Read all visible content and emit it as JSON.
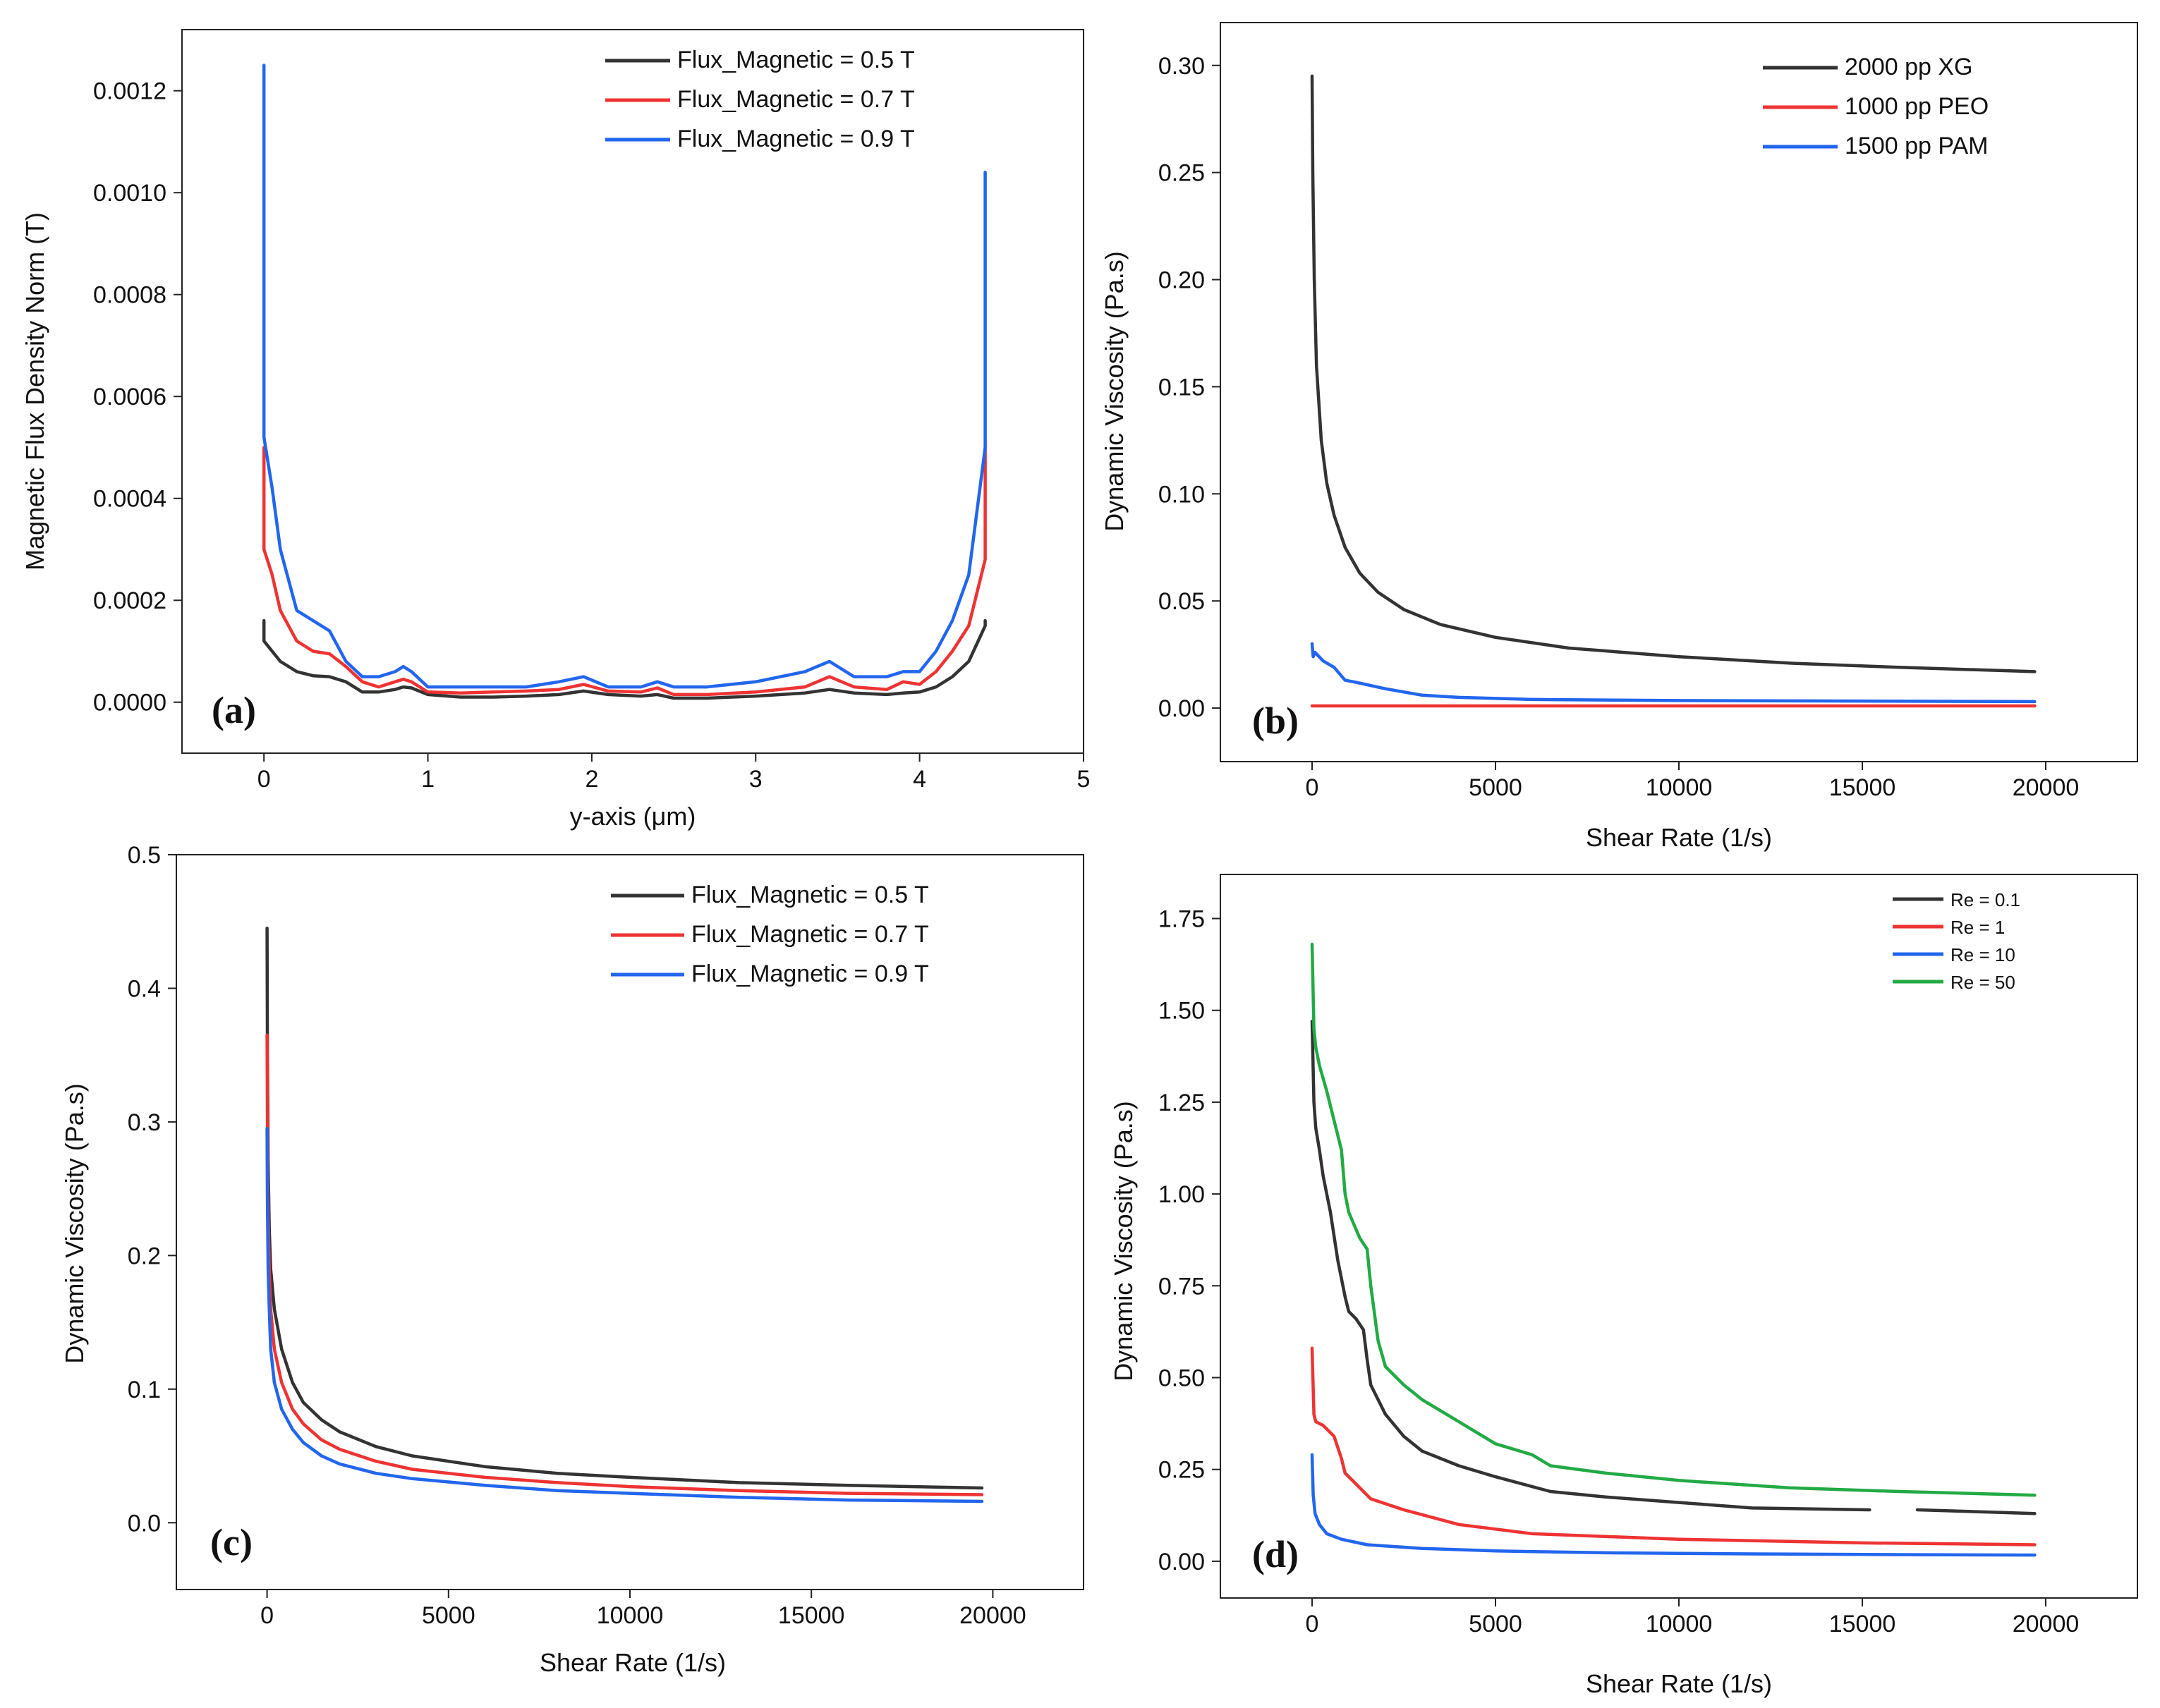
{
  "chart_data": [
    {
      "id": "a",
      "type": "line",
      "panel_label": "(a)",
      "xlabel": "y-axis (μm)",
      "ylabel": "Magnetic Flux Density Norm (T)",
      "xlim": [
        -0.5,
        5
      ],
      "ylim": [
        -0.0001,
        0.00132
      ],
      "xticks": [
        0,
        1,
        2,
        3,
        4,
        5
      ],
      "yticks": [
        0.0,
        0.0002,
        0.0004,
        0.0006,
        0.0008,
        0.001,
        0.0012
      ],
      "ytick_labels": [
        "0.0000",
        "0.0002",
        "0.0004",
        "0.0006",
        "0.0008",
        "0.0010",
        "0.0012"
      ],
      "legend_position": "top-right",
      "series": [
        {
          "name": "Flux_Magnetic = 0.5 T",
          "color": "#333333",
          "x": [
            0,
            0,
            0.05,
            0.1,
            0.2,
            0.3,
            0.4,
            0.5,
            0.6,
            0.7,
            0.8,
            0.85,
            0.9,
            1.0,
            1.2,
            1.4,
            1.6,
            1.8,
            1.95,
            2.1,
            2.3,
            2.4,
            2.5,
            2.7,
            3.0,
            3.3,
            3.45,
            3.6,
            3.8,
            3.9,
            4.0,
            4.1,
            4.2,
            4.3,
            4.4,
            4.4
          ],
          "y": [
            0.00016,
            0.00012,
            0.0001,
            8e-05,
            6e-05,
            5.2e-05,
            5e-05,
            4e-05,
            2e-05,
            2e-05,
            2.5e-05,
            3e-05,
            2.8e-05,
            1.5e-05,
            1e-05,
            1e-05,
            1.2e-05,
            1.5e-05,
            2.2e-05,
            1.5e-05,
            1.2e-05,
            1.5e-05,
            8e-06,
            8e-06,
            1.2e-05,
            1.8e-05,
            2.5e-05,
            1.8e-05,
            1.5e-05,
            1.8e-05,
            2e-05,
            3e-05,
            5e-05,
            8e-05,
            0.00015,
            0.00016
          ]
        },
        {
          "name": "Flux_Magnetic = 0.7 T",
          "color": "#ee3333",
          "x": [
            0,
            0,
            0.05,
            0.1,
            0.2,
            0.3,
            0.4,
            0.5,
            0.6,
            0.7,
            0.8,
            0.85,
            0.9,
            1.0,
            1.2,
            1.4,
            1.6,
            1.8,
            1.95,
            2.1,
            2.3,
            2.4,
            2.5,
            2.7,
            3.0,
            3.3,
            3.45,
            3.6,
            3.8,
            3.9,
            4.0,
            4.1,
            4.2,
            4.3,
            4.4,
            4.4
          ],
          "y": [
            0.0005,
            0.0003,
            0.00025,
            0.00018,
            0.00012,
            0.0001,
            9.5e-05,
            7e-05,
            4e-05,
            3e-05,
            4e-05,
            4.5e-05,
            4e-05,
            2e-05,
            1.8e-05,
            2e-05,
            2.2e-05,
            2.5e-05,
            3.5e-05,
            2.2e-05,
            2e-05,
            2.8e-05,
            1.5e-05,
            1.5e-05,
            2e-05,
            3e-05,
            5e-05,
            3e-05,
            2.5e-05,
            4e-05,
            3.5e-05,
            6e-05,
            0.0001,
            0.00015,
            0.00028,
            0.0005
          ]
        },
        {
          "name": "Flux_Magnetic = 0.9 T",
          "color": "#2266ee",
          "x": [
            0,
            0,
            0.05,
            0.1,
            0.2,
            0.3,
            0.4,
            0.5,
            0.6,
            0.7,
            0.8,
            0.85,
            0.9,
            1.0,
            1.2,
            1.4,
            1.6,
            1.8,
            1.95,
            2.1,
            2.3,
            2.4,
            2.5,
            2.7,
            3.0,
            3.3,
            3.45,
            3.6,
            3.8,
            3.9,
            4.0,
            4.1,
            4.2,
            4.3,
            4.4,
            4.4
          ],
          "y": [
            0.00125,
            0.00052,
            0.00042,
            0.0003,
            0.00018,
            0.00016,
            0.00014,
            8e-05,
            5e-05,
            5e-05,
            6e-05,
            7e-05,
            6e-05,
            3e-05,
            3e-05,
            3e-05,
            3e-05,
            4e-05,
            5e-05,
            3e-05,
            3e-05,
            4e-05,
            3e-05,
            3e-05,
            4e-05,
            6e-05,
            8e-05,
            5e-05,
            5e-05,
            6e-05,
            6e-05,
            0.0001,
            0.00016,
            0.00025,
            0.0005,
            0.00104
          ]
        }
      ]
    },
    {
      "id": "b",
      "type": "line",
      "panel_label": "(b)",
      "xlabel": "Shear Rate (1/s)",
      "ylabel": "Dynamic Viscosity (Pa.s)",
      "xlim": [
        -2500,
        22500
      ],
      "ylim": [
        -0.025,
        0.32
      ],
      "xticks": [
        0,
        5000,
        10000,
        15000,
        20000
      ],
      "yticks": [
        0.0,
        0.05,
        0.1,
        0.15,
        0.2,
        0.25,
        0.3
      ],
      "ytick_labels": [
        "0.00",
        "0.05",
        "0.10",
        "0.15",
        "0.20",
        "0.25",
        "0.30"
      ],
      "legend_position": "top-right",
      "series": [
        {
          "name": "2000 pp XG",
          "color": "#333333",
          "x": [
            0,
            20,
            60,
            120,
            250,
            400,
            600,
            900,
            1300,
            1800,
            2500,
            3500,
            5000,
            7000,
            10000,
            13000,
            16000,
            19700
          ],
          "y": [
            0.295,
            0.25,
            0.2,
            0.16,
            0.125,
            0.105,
            0.09,
            0.075,
            0.063,
            0.054,
            0.046,
            0.039,
            0.033,
            0.028,
            0.024,
            0.021,
            0.019,
            0.017
          ]
        },
        {
          "name": "1000 pp PEO",
          "color": "#ee3333",
          "x": [
            0,
            19700
          ],
          "y": [
            0.001,
            0.001
          ]
        },
        {
          "name": "1500 pp PAM",
          "color": "#2266ee",
          "x": [
            0,
            30,
            80,
            300,
            600,
            900,
            1200,
            2000,
            3000,
            4000,
            6000,
            10000,
            19700
          ],
          "y": [
            0.03,
            0.024,
            0.026,
            0.022,
            0.019,
            0.013,
            0.012,
            0.009,
            0.006,
            0.005,
            0.004,
            0.0035,
            0.003
          ]
        }
      ]
    },
    {
      "id": "c",
      "type": "line",
      "panel_label": "(c)",
      "xlabel": "Shear Rate (1/s)",
      "ylabel": "Dynamic Viscosity (Pa.s)",
      "xlim": [
        -2500,
        22500
      ],
      "ylim": [
        -0.05,
        0.5
      ],
      "xticks": [
        0,
        5000,
        10000,
        15000,
        20000
      ],
      "yticks": [
        0.0,
        0.1,
        0.2,
        0.3,
        0.4,
        0.5
      ],
      "ytick_labels": [
        "0.0",
        "0.1",
        "0.2",
        "0.3",
        "0.4",
        "0.5"
      ],
      "legend_position": "top-right",
      "series": [
        {
          "name": "Flux_Magnetic = 0.5 T",
          "color": "#333333",
          "x": [
            0,
            10,
            30,
            60,
            100,
            200,
            400,
            700,
            1000,
            1500,
            2000,
            3000,
            4000,
            6000,
            8000,
            10000,
            13000,
            16000,
            19700
          ],
          "y": [
            0.445,
            0.35,
            0.27,
            0.22,
            0.19,
            0.16,
            0.13,
            0.105,
            0.09,
            0.077,
            0.068,
            0.057,
            0.05,
            0.042,
            0.037,
            0.034,
            0.03,
            0.028,
            0.026
          ]
        },
        {
          "name": "Flux_Magnetic = 0.7 T",
          "color": "#ee3333",
          "x": [
            0,
            10,
            30,
            60,
            100,
            200,
            400,
            700,
            1000,
            1500,
            2000,
            3000,
            4000,
            6000,
            8000,
            10000,
            13000,
            16000,
            19700
          ],
          "y": [
            0.365,
            0.3,
            0.23,
            0.19,
            0.16,
            0.13,
            0.105,
            0.085,
            0.074,
            0.062,
            0.055,
            0.046,
            0.04,
            0.034,
            0.03,
            0.027,
            0.024,
            0.022,
            0.021
          ]
        },
        {
          "name": "Flux_Magnetic = 0.9 T",
          "color": "#2266ee",
          "x": [
            0,
            10,
            30,
            60,
            100,
            200,
            400,
            700,
            1000,
            1500,
            2000,
            3000,
            4000,
            6000,
            8000,
            10000,
            13000,
            16000,
            19700
          ],
          "y": [
            0.295,
            0.24,
            0.19,
            0.16,
            0.13,
            0.105,
            0.085,
            0.07,
            0.06,
            0.05,
            0.044,
            0.037,
            0.033,
            0.028,
            0.024,
            0.022,
            0.019,
            0.017,
            0.016
          ]
        }
      ]
    },
    {
      "id": "d",
      "type": "line",
      "panel_label": "(d)",
      "xlabel": "Shear Rate (1/s)",
      "ylabel": "Dynamic Viscosity (Pa.s)",
      "xlim": [
        -2500,
        22500
      ],
      "ylim": [
        -0.1,
        1.87
      ],
      "xticks": [
        0,
        5000,
        10000,
        15000,
        20000
      ],
      "yticks": [
        0.0,
        0.25,
        0.5,
        0.75,
        1.0,
        1.25,
        1.5,
        1.75
      ],
      "ytick_labels": [
        "0.00",
        "0.25",
        "0.50",
        "0.75",
        "1.00",
        "1.25",
        "1.50",
        "1.75"
      ],
      "legend_position": "top-right",
      "series": [
        {
          "name": "Re = 0.1",
          "color": "#333333",
          "x": [
            0,
            50,
            100,
            200,
            300,
            500,
            700,
            900,
            1000,
            1200,
            1400,
            1500,
            1600,
            2000,
            2500,
            3000,
            4000,
            5000,
            6500,
            8000,
            10000,
            12000,
            15200,
            null,
            16500,
            19700
          ],
          "y": [
            1.47,
            1.25,
            1.18,
            1.12,
            1.05,
            0.95,
            0.82,
            0.72,
            0.68,
            0.66,
            0.63,
            0.55,
            0.48,
            0.4,
            0.34,
            0.3,
            0.26,
            0.23,
            0.19,
            0.175,
            0.16,
            0.145,
            0.14,
            null,
            0.14,
            0.13
          ]
        },
        {
          "name": "Re = 1",
          "color": "#ee3333",
          "x": [
            0,
            50,
            100,
            300,
            600,
            800,
            900,
            1200,
            1600,
            2500,
            4000,
            6000,
            10000,
            15000,
            19700
          ],
          "y": [
            0.58,
            0.4,
            0.38,
            0.37,
            0.34,
            0.28,
            0.24,
            0.21,
            0.17,
            0.14,
            0.1,
            0.075,
            0.06,
            0.05,
            0.045
          ]
        },
        {
          "name": "Re = 10",
          "color": "#2266ee",
          "x": [
            0,
            30,
            80,
            200,
            400,
            800,
            1500,
            3000,
            5000,
            8000,
            12000,
            16000,
            19700
          ],
          "y": [
            0.29,
            0.18,
            0.13,
            0.1,
            0.075,
            0.06,
            0.045,
            0.035,
            0.028,
            0.023,
            0.02,
            0.018,
            0.017
          ]
        },
        {
          "name": "Re = 50",
          "color": "#22aa44",
          "x": [
            0,
            50,
            100,
            200,
            400,
            600,
            800,
            900,
            1000,
            1300,
            1500,
            1600,
            1800,
            2000,
            2500,
            3000,
            4000,
            5000,
            6000,
            6500,
            8000,
            10000,
            13000,
            16000,
            19700
          ],
          "y": [
            1.68,
            1.45,
            1.4,
            1.35,
            1.28,
            1.2,
            1.12,
            1.0,
            0.95,
            0.88,
            0.85,
            0.75,
            0.6,
            0.53,
            0.48,
            0.44,
            0.38,
            0.32,
            0.29,
            0.26,
            0.24,
            0.22,
            0.2,
            0.19,
            0.18
          ]
        }
      ]
    }
  ]
}
